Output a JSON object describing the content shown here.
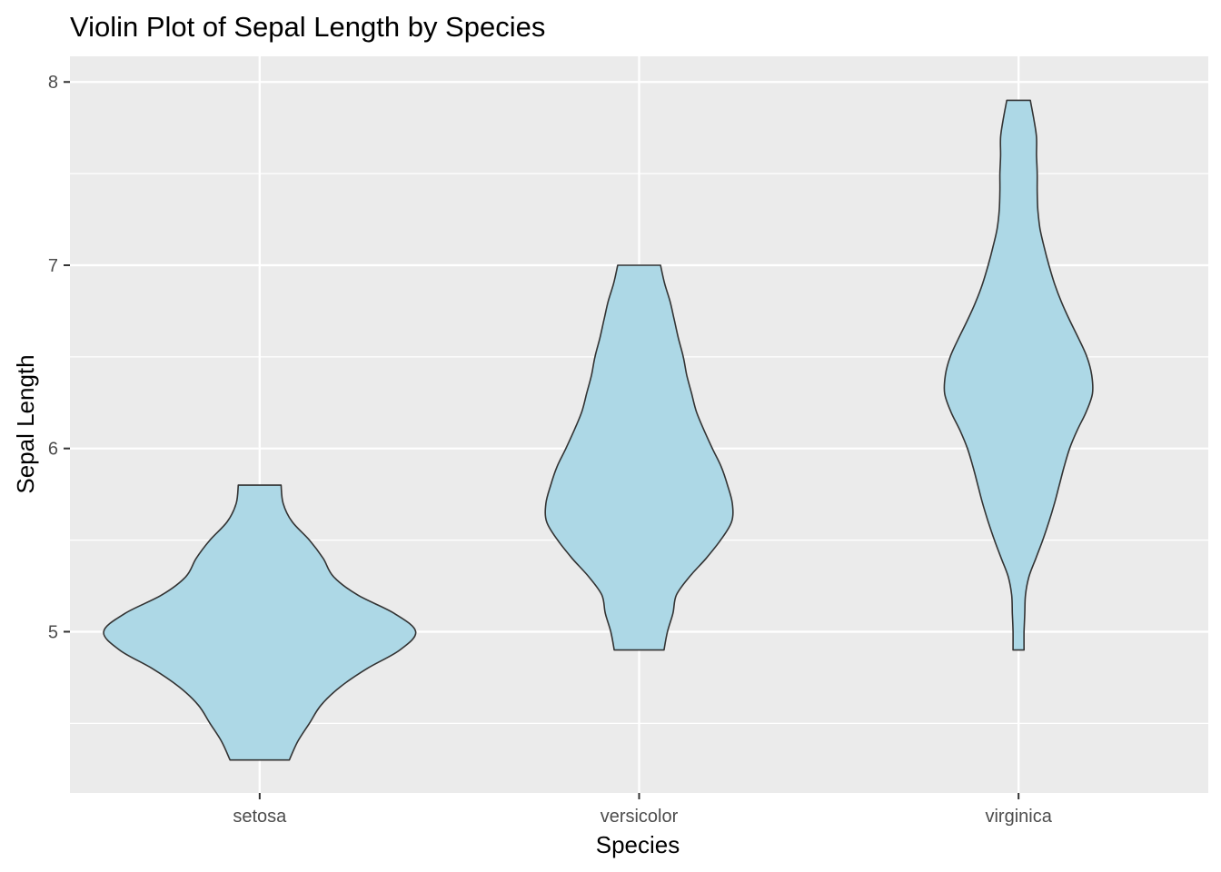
{
  "chart_data": {
    "type": "violin",
    "title": "Violin Plot of Sepal Length by Species",
    "xlabel": "Species",
    "ylabel": "Sepal Length",
    "ylim": [
      4.12,
      8.14
    ],
    "yticks": [
      5,
      6,
      7,
      8
    ],
    "grid": true,
    "legend": "none",
    "colors": {
      "panel": "#EBEBEB",
      "grid": "#FFFFFF",
      "fill": "#ADD8E6",
      "outline": "#333333",
      "tick_text": "#4D4D4D"
    },
    "categories": [
      "setosa",
      "versicolor",
      "virginica"
    ],
    "violins": [
      {
        "category": "setosa",
        "min": 4.3,
        "max": 5.8,
        "profile": [
          [
            4.3,
            0.43
          ],
          [
            4.4,
            0.55
          ],
          [
            4.5,
            0.72
          ],
          [
            4.6,
            0.89
          ],
          [
            4.7,
            1.17
          ],
          [
            4.8,
            1.56
          ],
          [
            4.9,
            2.03
          ],
          [
            5.0,
            2.26
          ],
          [
            5.1,
            1.95
          ],
          [
            5.2,
            1.42
          ],
          [
            5.3,
            1.07
          ],
          [
            5.4,
            0.92
          ],
          [
            5.5,
            0.72
          ],
          [
            5.6,
            0.47
          ],
          [
            5.7,
            0.34
          ],
          [
            5.8,
            0.31
          ]
        ]
      },
      {
        "category": "versicolor",
        "min": 4.9,
        "max": 7.0,
        "profile": [
          [
            4.9,
            0.36
          ],
          [
            5.0,
            0.41
          ],
          [
            5.1,
            0.49
          ],
          [
            5.2,
            0.54
          ],
          [
            5.3,
            0.73
          ],
          [
            5.4,
            0.97
          ],
          [
            5.5,
            1.18
          ],
          [
            5.6,
            1.34
          ],
          [
            5.7,
            1.35
          ],
          [
            5.8,
            1.28
          ],
          [
            5.9,
            1.19
          ],
          [
            6.0,
            1.06
          ],
          [
            6.1,
            0.94
          ],
          [
            6.2,
            0.83
          ],
          [
            6.3,
            0.76
          ],
          [
            6.4,
            0.69
          ],
          [
            6.5,
            0.64
          ],
          [
            6.6,
            0.57
          ],
          [
            6.7,
            0.51
          ],
          [
            6.8,
            0.45
          ],
          [
            6.9,
            0.37
          ],
          [
            7.0,
            0.31
          ]
        ]
      },
      {
        "category": "virginica",
        "min": 4.9,
        "max": 7.9,
        "profile": [
          [
            4.9,
            0.08
          ],
          [
            5.0,
            0.08
          ],
          [
            5.1,
            0.09
          ],
          [
            5.2,
            0.1
          ],
          [
            5.3,
            0.15
          ],
          [
            5.4,
            0.25
          ],
          [
            5.5,
            0.35
          ],
          [
            5.6,
            0.44
          ],
          [
            5.7,
            0.52
          ],
          [
            5.8,
            0.59
          ],
          [
            5.9,
            0.66
          ],
          [
            6.0,
            0.74
          ],
          [
            6.1,
            0.85
          ],
          [
            6.2,
            0.98
          ],
          [
            6.3,
            1.07
          ],
          [
            6.4,
            1.06
          ],
          [
            6.5,
            0.99
          ],
          [
            6.6,
            0.87
          ],
          [
            6.7,
            0.74
          ],
          [
            6.8,
            0.62
          ],
          [
            6.9,
            0.52
          ],
          [
            7.0,
            0.44
          ],
          [
            7.1,
            0.37
          ],
          [
            7.2,
            0.31
          ],
          [
            7.3,
            0.28
          ],
          [
            7.4,
            0.27
          ],
          [
            7.5,
            0.27
          ],
          [
            7.6,
            0.26
          ],
          [
            7.7,
            0.26
          ],
          [
            7.8,
            0.22
          ],
          [
            7.9,
            0.17
          ]
        ]
      }
    ]
  }
}
